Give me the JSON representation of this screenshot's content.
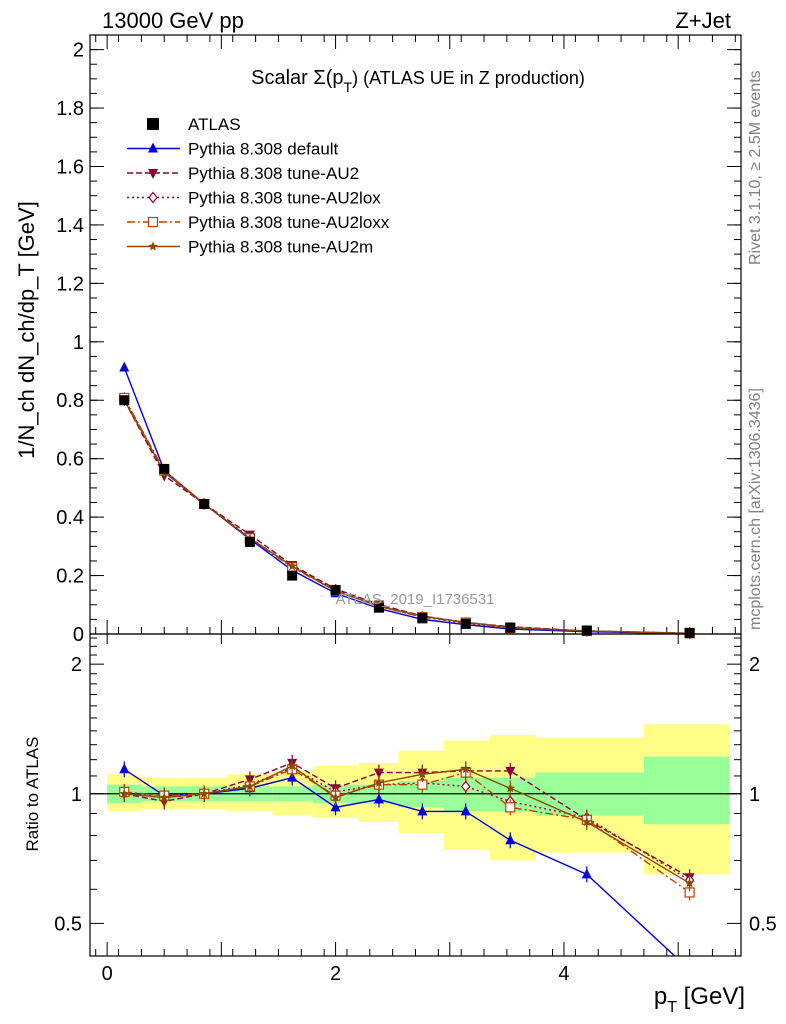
{
  "header": {
    "left": "13000 GeV pp",
    "right": "Z+Jet"
  },
  "side_labels": {
    "rivet": "Rivet 3.1.10, ≥ 2.5M events",
    "mcplots": "mcplots.cern.ch [arXiv:1306.3436]"
  },
  "watermark": "ATLAS_2019_I1736531",
  "chart_data": {
    "type": "line",
    "title": "Scalar Σ(p_T) (ATLAS UE in Z production)",
    "title_main": "Scalar Σ(p",
    "title_sub": "T",
    "title_tail": ") (ATLAS UE in Z production)",
    "xlabel": "p_T [GeV]",
    "xlabel_main": "p",
    "xlabel_sub": "T",
    "xlabel_tail": " [GeV]",
    "ylabel": "1/N_ch dN_ch/dp_T [GeV]",
    "ratio_ylabel": "Ratio to ATLAS",
    "xlim": [
      -0.15,
      5.55
    ],
    "ylim": [
      0,
      2.05
    ],
    "ratio_ylim": [
      0.42,
      2.35
    ],
    "ratio_scale": "log",
    "x_ticks": [
      0,
      2,
      4
    ],
    "y_ticks": [
      0,
      0.2,
      0.4,
      0.6,
      0.8,
      1,
      1.2,
      1.4,
      1.6,
      1.8,
      2
    ],
    "y_tick_labels": [
      "0",
      "0.2",
      "0.4",
      "0.6",
      "0.8",
      "1",
      "1.2",
      "1.4",
      "1.6",
      "1.8",
      "2"
    ],
    "ratio_ticks": [
      0.5,
      1,
      2
    ],
    "ratio_tick_labels": [
      "0.5",
      "1",
      "2"
    ],
    "legend_position": "top-left",
    "x": [
      0.15,
      0.5,
      0.85,
      1.25,
      1.62,
      2.0,
      2.38,
      2.76,
      3.14,
      3.53,
      4.2,
      5.1
    ],
    "data": {
      "name": "ATLAS",
      "values": [
        0.8,
        0.565,
        0.445,
        0.315,
        0.2,
        0.15,
        0.09,
        0.055,
        0.035,
        0.022,
        0.012,
        0.004
      ]
    },
    "series": [
      {
        "name": "Pythia 8.308 default",
        "color": "#0000dd",
        "dash": "",
        "marker": "triangle-up",
        "ratio": [
          1.14,
          0.99,
          1.0,
          1.03,
          1.09,
          0.93,
          0.97,
          0.91,
          0.91,
          0.78,
          0.65,
          0.39
        ]
      },
      {
        "name": "Pythia 8.308 tune-AU2",
        "color": "#8b0038",
        "dash": "6,3",
        "marker": "triangle-down",
        "ratio": [
          1.0,
          0.96,
          1.0,
          1.08,
          1.18,
          1.03,
          1.12,
          1.12,
          1.13,
          1.13,
          0.87,
          0.64
        ]
      },
      {
        "name": "Pythia 8.308 tune-AU2lox",
        "color": "#a0002c",
        "dash": "2,3",
        "marker": "diamond-open",
        "ratio": [
          1.01,
          0.98,
          1.0,
          1.05,
          1.15,
          1.01,
          1.05,
          1.06,
          1.04,
          0.96,
          0.88,
          0.63
        ]
      },
      {
        "name": "Pythia 8.308 tune-AU2loxx",
        "color": "#c04000",
        "dash": "8,3,2,3",
        "marker": "square-open",
        "ratio": [
          1.01,
          0.99,
          1.0,
          1.04,
          1.14,
          0.99,
          1.05,
          1.05,
          1.12,
          0.93,
          0.87,
          0.59
        ]
      },
      {
        "name": "Pythia 8.308 tune-AU2m",
        "color": "#8b4a00",
        "dash": "",
        "marker": "star",
        "ratio": [
          1.0,
          0.98,
          1.0,
          1.04,
          1.16,
          0.98,
          1.06,
          1.11,
          1.14,
          1.03,
          0.86,
          0.62
        ]
      }
    ],
    "uncertainty_bands": {
      "x_edges": [
        0.0,
        0.3,
        0.65,
        1.05,
        1.45,
        1.8,
        2.2,
        2.55,
        2.95,
        3.35,
        3.75,
        4.7,
        5.45
      ],
      "stat_lo": [
        0.95,
        0.96,
        0.96,
        0.96,
        0.96,
        0.95,
        0.95,
        0.93,
        0.91,
        0.91,
        0.89,
        0.85
      ],
      "stat_hi": [
        1.05,
        1.04,
        1.04,
        1.04,
        1.04,
        1.05,
        1.05,
        1.07,
        1.09,
        1.09,
        1.12,
        1.22
      ],
      "total_lo": [
        0.91,
        0.92,
        0.92,
        0.91,
        0.89,
        0.88,
        0.86,
        0.81,
        0.74,
        0.7,
        0.73,
        0.65
      ],
      "total_hi": [
        1.11,
        1.09,
        1.09,
        1.11,
        1.13,
        1.16,
        1.18,
        1.26,
        1.33,
        1.37,
        1.35,
        1.45
      ],
      "stat_color": "#99ff99",
      "total_color": "#ffff88"
    }
  }
}
